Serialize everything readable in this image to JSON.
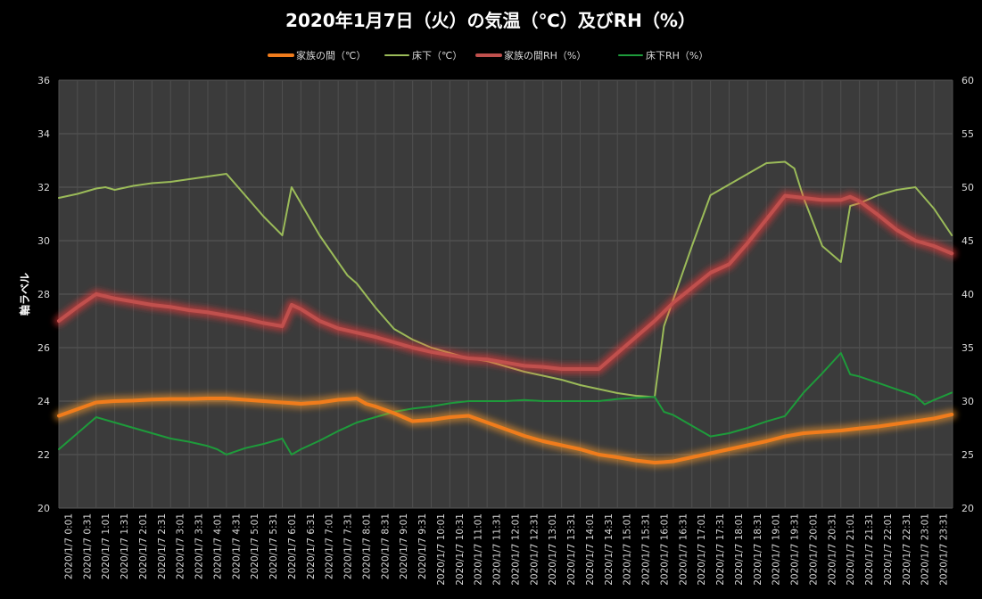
{
  "chart_data": {
    "type": "line",
    "title": "2020年1月7日（火）の気温（℃）及びRH（%）",
    "ylabel": "軸ラベル",
    "ylim": [
      20,
      36
    ],
    "y_ticks": [
      20,
      22,
      24,
      26,
      28,
      30,
      32,
      34,
      36
    ],
    "y2lim": [
      20,
      60
    ],
    "y2_ticks": [
      20,
      25,
      30,
      35,
      40,
      45,
      50,
      55,
      60
    ],
    "grid": true,
    "legend_position": "top",
    "x_labels": [
      "2020/1/7 0:01",
      "2020/1/7 0:31",
      "2020/1/7 1:01",
      "2020/1/7 1:31",
      "2020/1/7 2:01",
      "2020/1/7 2:31",
      "2020/1/7 3:01",
      "2020/1/7 3:31",
      "2020/1/7 4:01",
      "2020/1/7 4:31",
      "2020/1/7 5:01",
      "2020/1/7 5:31",
      "2020/1/7 6:01",
      "2020/1/7 6:31",
      "2020/1/7 7:01",
      "2020/1/7 7:31",
      "2020/1/7 8:01",
      "2020/1/7 8:31",
      "2020/1/7 9:01",
      "2020/1/7 9:31",
      "2020/1/7 10:01",
      "2020/1/7 10:31",
      "2020/1/7 11:01",
      "2020/1/7 11:31",
      "2020/1/7 12:01",
      "2020/1/7 12:31",
      "2020/1/7 13:01",
      "2020/1/7 13:31",
      "2020/1/7 14:01",
      "2020/1/7 14:31",
      "2020/1/7 15:01",
      "2020/1/7 15:31",
      "2020/1/7 16:01",
      "2020/1/7 16:31",
      "2020/1/7 17:01",
      "2020/1/7 17:31",
      "2020/1/7 18:01",
      "2020/1/7 18:31",
      "2020/1/7 19:01",
      "2020/1/7 19:31",
      "2020/1/7 20:01",
      "2020/1/7 20:31",
      "2020/1/7 21:01",
      "2020/1/7 21:31",
      "2020/1/7 22:01",
      "2020/1/7 22:31",
      "2020/1/7 23:01",
      "2020/1/7 23:31"
    ],
    "series": [
      {
        "name": "家族の間（℃）",
        "axis": "left",
        "color": "#f07c1c",
        "glow": "#ff9a2a",
        "width": 4,
        "x": [
          0,
          0.5,
          1,
          1.5,
          2,
          2.5,
          3,
          3.5,
          4,
          4.5,
          5,
          5.5,
          6,
          6.5,
          7,
          7.5,
          8,
          8.25,
          8.5,
          9,
          9.5,
          10,
          10.5,
          11,
          11.5,
          12,
          12.5,
          13,
          13.5,
          14,
          14.5,
          15,
          15.5,
          16,
          16.25,
          16.5,
          17,
          17.5,
          18,
          18.5,
          19,
          19.5,
          20,
          20.5,
          21,
          21.5,
          22,
          22.5,
          23,
          23.5,
          23.98
        ],
        "y": [
          23.45,
          23.7,
          23.95,
          24.0,
          24.02,
          24.06,
          24.08,
          24.08,
          24.1,
          24.1,
          24.05,
          24.0,
          23.95,
          23.9,
          23.95,
          24.05,
          24.1,
          23.9,
          23.8,
          23.55,
          23.25,
          23.3,
          23.4,
          23.45,
          23.2,
          22.95,
          22.7,
          22.5,
          22.35,
          22.2,
          22.0,
          21.9,
          21.78,
          21.7,
          21.72,
          21.75,
          21.9,
          22.05,
          22.2,
          22.35,
          22.5,
          22.68,
          22.8,
          22.85,
          22.9,
          22.98,
          23.05,
          23.15,
          23.25,
          23.35,
          23.5
        ]
      },
      {
        "name": "床下（℃）",
        "axis": "left",
        "color": "#9bbb59",
        "width": 2,
        "x": [
          0,
          0.5,
          1,
          1.25,
          1.5,
          2,
          2.5,
          3,
          3.5,
          4,
          4.5,
          5,
          5.5,
          6,
          6.25,
          6.5,
          7,
          7.5,
          7.75,
          8,
          8.5,
          9,
          9.5,
          10,
          10.5,
          11,
          11.5,
          12,
          12.5,
          13,
          13.5,
          14,
          14.5,
          15,
          15.5,
          16,
          16.25,
          16.5,
          17,
          17.5,
          18,
          18.5,
          19,
          19.5,
          19.75,
          20,
          20.5,
          21,
          21.25,
          21.5,
          22,
          22.5,
          23,
          23.5,
          23.98
        ],
        "y": [
          31.6,
          31.75,
          31.95,
          32.0,
          31.9,
          32.05,
          32.15,
          32.2,
          32.3,
          32.4,
          32.5,
          31.7,
          30.9,
          30.2,
          32.0,
          31.4,
          30.2,
          29.2,
          28.7,
          28.4,
          27.5,
          26.7,
          26.3,
          26.0,
          25.8,
          25.6,
          25.5,
          25.3,
          25.1,
          24.95,
          24.8,
          24.6,
          24.45,
          24.3,
          24.2,
          24.15,
          26.8,
          27.8,
          29.8,
          31.7,
          32.1,
          32.5,
          32.9,
          32.95,
          32.7,
          31.6,
          29.8,
          29.2,
          31.3,
          31.4,
          31.7,
          31.9,
          32.0,
          31.2,
          30.2
        ]
      },
      {
        "name": "家族の間RH（%）",
        "axis": "right",
        "color": "#c0504d",
        "glow": "#ff3a3a",
        "width": 4,
        "x": [
          0,
          0.5,
          1,
          1.25,
          1.5,
          2,
          2.5,
          3,
          3.5,
          4,
          4.5,
          5,
          5.5,
          6,
          6.25,
          6.5,
          7,
          7.5,
          8,
          8.5,
          9,
          9.5,
          10,
          10.5,
          11,
          11.5,
          12,
          12.5,
          13,
          13.5,
          14,
          14.5,
          15,
          15.5,
          16,
          16.5,
          17,
          17.5,
          18,
          18.5,
          19,
          19.5,
          20,
          20.5,
          21,
          21.25,
          21.5,
          22,
          22.5,
          23,
          23.5,
          23.98
        ],
        "y": [
          37.5,
          38.8,
          40.0,
          39.8,
          39.6,
          39.3,
          39.0,
          38.8,
          38.5,
          38.3,
          38.0,
          37.7,
          37.3,
          37.0,
          39.0,
          38.6,
          37.5,
          36.8,
          36.4,
          36.0,
          35.5,
          35.0,
          34.6,
          34.3,
          34.0,
          33.9,
          33.6,
          33.3,
          33.2,
          33.0,
          33.0,
          33.0,
          34.5,
          36.0,
          37.5,
          39.2,
          40.6,
          42.0,
          42.8,
          44.8,
          47.0,
          49.2,
          49.0,
          48.8,
          48.8,
          49.1,
          48.7,
          47.4,
          46.0,
          45.0,
          44.5,
          43.8
        ]
      },
      {
        "name": "床下RH（%）",
        "axis": "right",
        "color": "#1e9b3b",
        "width": 2,
        "x": [
          0,
          0.5,
          1,
          1.5,
          2,
          2.5,
          3,
          3.5,
          4,
          4.25,
          4.5,
          5,
          5.5,
          6,
          6.25,
          6.5,
          7,
          7.5,
          7.75,
          8,
          8.5,
          9,
          9.5,
          10,
          10.5,
          11,
          11.5,
          12,
          12.5,
          13,
          13.5,
          14,
          14.5,
          15,
          15.5,
          16,
          16.25,
          16.5,
          17,
          17.5,
          18,
          18.5,
          19,
          19.5,
          19.75,
          20,
          20.5,
          21,
          21.25,
          21.5,
          22,
          22.5,
          23,
          23.25,
          23.5,
          23.98
        ],
        "y": [
          25.5,
          27.0,
          28.5,
          28.0,
          27.5,
          27.0,
          26.5,
          26.2,
          25.8,
          25.5,
          25.0,
          25.6,
          26.0,
          26.5,
          25.0,
          25.5,
          26.3,
          27.2,
          27.6,
          28.0,
          28.5,
          29.0,
          29.3,
          29.5,
          29.8,
          30.0,
          30.0,
          30.0,
          30.1,
          30.0,
          30.0,
          30.0,
          30.0,
          30.2,
          30.3,
          30.4,
          29.0,
          28.7,
          27.7,
          26.7,
          27.0,
          27.5,
          28.1,
          28.6,
          29.7,
          30.8,
          32.6,
          34.5,
          32.5,
          32.3,
          31.7,
          31.1,
          30.5,
          29.7,
          30.1,
          30.8
        ]
      }
    ]
  }
}
